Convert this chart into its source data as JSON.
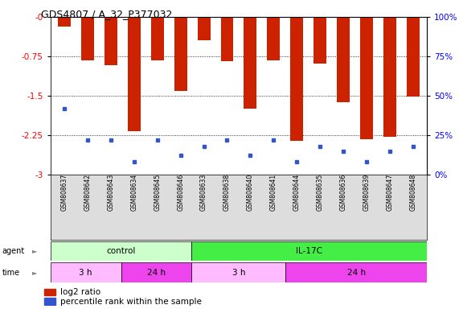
{
  "title": "GDS4807 / A_32_P377032",
  "samples": [
    "GSM808637",
    "GSM808642",
    "GSM808643",
    "GSM808634",
    "GSM808645",
    "GSM808646",
    "GSM808633",
    "GSM808638",
    "GSM808640",
    "GSM808641",
    "GSM808644",
    "GSM808635",
    "GSM808636",
    "GSM808639",
    "GSM808647",
    "GSM808648"
  ],
  "log2_ratio": [
    -0.18,
    -0.82,
    -0.92,
    -2.18,
    -0.82,
    -1.4,
    -0.45,
    -0.84,
    -1.75,
    -0.82,
    -2.35,
    -0.88,
    -1.62,
    -2.32,
    -2.28,
    -1.52
  ],
  "percentile_rank": [
    42,
    22,
    22,
    8,
    22,
    12,
    18,
    22,
    12,
    22,
    8,
    18,
    15,
    8,
    15,
    18
  ],
  "ylim_left": [
    -3,
    0
  ],
  "ylim_right": [
    0,
    100
  ],
  "yticks_left": [
    0,
    -0.75,
    -1.5,
    -2.25,
    -3
  ],
  "yticks_right": [
    0,
    25,
    50,
    75,
    100
  ],
  "bar_color": "#cc2200",
  "dot_color": "#3355cc",
  "agent_control_color": "#ccffcc",
  "agent_il17c_color": "#44ee44",
  "time_3h_color": "#ffbbff",
  "time_24h_color": "#ee44ee",
  "control_count": 6,
  "il17c_count": 10,
  "control_3h_count": 3,
  "control_24h_count": 3,
  "il17c_3h_count": 4,
  "il17c_24h_count": 6,
  "legend_red": "log2 ratio",
  "legend_blue": "percentile rank within the sample",
  "bar_width": 0.55
}
